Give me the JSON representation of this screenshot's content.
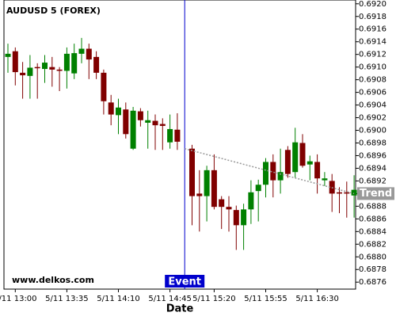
{
  "chart_data": {
    "type": "candlestick",
    "title": "AUDUSD 5 (FOREX)",
    "watermark": "www.delkos.com",
    "x_label": "Date",
    "categories": [
      null,
      "5/11 13:00",
      null,
      null,
      null,
      null,
      null,
      null,
      "5/11 13:35",
      null,
      null,
      null,
      null,
      null,
      null,
      "5/11 14:10",
      null,
      null,
      null,
      null,
      null,
      null,
      "5/11 14:45",
      null,
      null,
      null,
      null,
      null,
      "5/11 15:20",
      null,
      null,
      null,
      null,
      null,
      null,
      "5/11 15:55",
      null,
      null,
      null,
      null,
      null,
      null,
      "5/11 16:30",
      null,
      null,
      null,
      null,
      null
    ],
    "open": [
      0.69116,
      0.69125,
      0.69091,
      0.69086,
      0.691,
      0.69097,
      0.691,
      0.69096,
      0.69094,
      0.6909,
      0.69121,
      0.69129,
      0.69116,
      0.69091,
      0.69044,
      0.69024,
      0.69033,
      0.68971,
      0.6903,
      0.69012,
      0.69015,
      0.6901,
      0.68981,
      0.69001,
      null,
      0.68971,
      0.689,
      0.68896,
      0.68937,
      0.68891,
      0.68879,
      0.68874,
      0.6885,
      0.68875,
      0.68904,
      0.68914,
      0.6895,
      0.68921,
      0.68969,
      0.68934,
      0.6898,
      0.68946,
      0.6895,
      0.68921,
      0.6892,
      0.68902,
      0.68902,
      0.68897
    ],
    "high": [
      0.69137,
      0.69131,
      0.69108,
      0.69119,
      0.69106,
      0.69119,
      0.69116,
      0.691,
      0.69131,
      0.69137,
      0.69146,
      0.69137,
      0.69125,
      0.69096,
      0.69056,
      0.6905,
      0.69044,
      0.69037,
      0.69035,
      0.69031,
      0.69025,
      0.69019,
      0.69025,
      0.69027,
      null,
      0.68977,
      0.68937,
      0.68944,
      0.68962,
      0.68896,
      0.68896,
      0.68881,
      0.68884,
      0.68921,
      0.68922,
      0.68956,
      0.68962,
      0.68971,
      0.68975,
      0.69004,
      0.68994,
      0.6896,
      0.68962,
      0.68934,
      0.68931,
      0.6891,
      0.68919,
      0.68929
    ],
    "low": [
      0.69091,
      0.69071,
      0.6905,
      0.6905,
      0.6905,
      0.69075,
      0.69069,
      0.69062,
      0.69066,
      0.69081,
      0.69106,
      0.69081,
      0.69081,
      0.69025,
      0.69008,
      0.68994,
      0.68987,
      0.68969,
      0.69006,
      0.68971,
      0.68969,
      0.68969,
      0.68971,
      0.68969,
      null,
      0.6885,
      0.6884,
      0.68856,
      0.68875,
      0.68844,
      0.6884,
      0.68811,
      0.68811,
      0.68852,
      0.68856,
      0.68894,
      0.68894,
      0.689,
      0.68925,
      0.68925,
      0.68941,
      0.68921,
      0.689,
      0.68912,
      0.68871,
      0.68869,
      0.68862,
      0.68862
    ],
    "close": [
      0.69121,
      0.69092,
      0.69087,
      0.69099,
      0.69099,
      0.69107,
      0.69096,
      0.69094,
      0.69121,
      0.69122,
      0.69129,
      0.69112,
      0.69091,
      0.69046,
      0.69025,
      0.69036,
      0.68994,
      0.69031,
      0.69016,
      0.69016,
      0.69008,
      0.69007,
      0.69002,
      0.68982,
      null,
      0.68896,
      0.68896,
      0.68937,
      0.68879,
      0.68879,
      0.68875,
      0.6885,
      0.68875,
      0.68902,
      0.68914,
      0.6895,
      0.68921,
      0.68934,
      0.68931,
      0.68981,
      0.68944,
      0.68951,
      0.68924,
      0.68924,
      0.689,
      0.689,
      0.689,
      0.68906
    ],
    "up_color": "#008000",
    "down_color": "#800000",
    "event": {
      "label": "Event",
      "color": "#0000cc"
    },
    "trend": {
      "label": "Trend",
      "from": 0.68971,
      "to": 0.689,
      "color": "#999999"
    },
    "ylim": [
      0.68749,
      0.69206
    ],
    "yticks": [
      0.6876,
      0.6878,
      {
        "value": 0.688,
        "label": "0.6880"
      },
      0.6882,
      0.6884,
      0.6886,
      0.6888,
      {
        "value": 0.689,
        "label": "0.6890"
      },
      0.6892,
      0.6894,
      0.6896,
      0.6898,
      {
        "value": 0.69,
        "label": "0.6900"
      },
      0.6902,
      0.6904,
      0.6906,
      0.6908,
      {
        "value": 0.691,
        "label": "0.6910"
      },
      0.6912,
      0.6914,
      0.6916,
      0.6918,
      {
        "value": 0.692,
        "label": "0.6920"
      }
    ],
    "grid": false
  }
}
